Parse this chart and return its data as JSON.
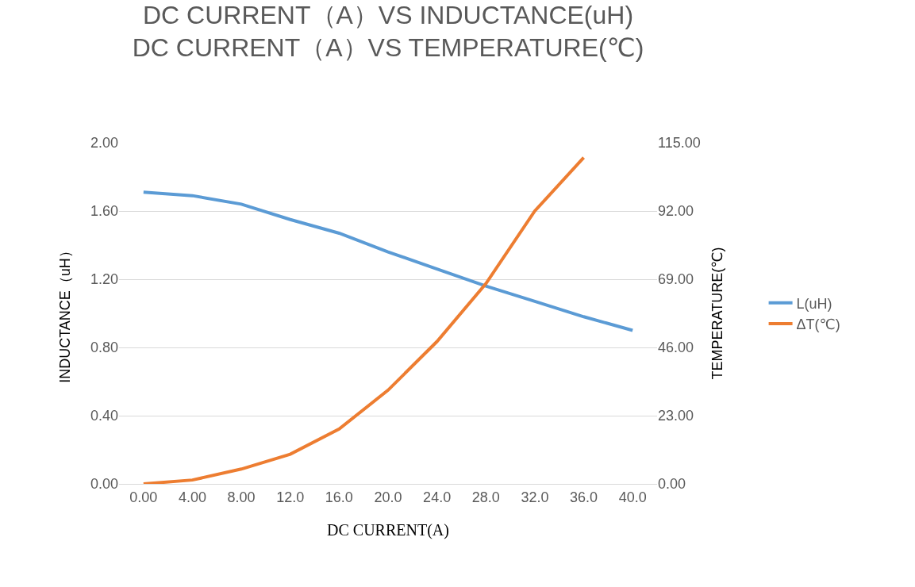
{
  "chart_data": {
    "type": "line",
    "title": "DC CURRENT（A）VS INDUCTANCE(uH)\nDC CURRENT（A）VS TEMPERATURE(℃)",
    "xlabel": "DC CURRENT(A)",
    "ylabel": "INDUCTANCE（uH）",
    "y2label": "TEMPERATURE(℃)",
    "categories": [
      "0.00",
      "4.00",
      "8.00",
      "12.0",
      "16.0",
      "20.0",
      "24.0",
      "28.0",
      "32.0",
      "36.0",
      "40.0"
    ],
    "series": [
      {
        "name": "L(uH)",
        "color": "#5b9bd5",
        "values": [
          1.71,
          1.69,
          1.64,
          1.55,
          1.47,
          1.36,
          1.26,
          1.16,
          1.07,
          0.98,
          0.9
        ]
      },
      {
        "name": "ΔT(℃)",
        "color": "#ed7d31",
        "axis": "y2",
        "values": [
          0,
          1.3,
          5,
          10,
          18.5,
          31.6,
          48,
          67.5,
          92,
          110,
          null
        ]
      }
    ],
    "ylim": [
      0,
      2
    ],
    "yticks": [
      {
        "value": 0,
        "label": "0.00"
      },
      {
        "value": 0.4,
        "label": "0.40"
      },
      {
        "value": 0.8,
        "label": "0.80"
      },
      {
        "value": 1.2,
        "label": "1.20"
      },
      {
        "value": 1.6,
        "label": "1.60"
      },
      {
        "value": 2,
        "label": "2.00"
      }
    ],
    "y2lim": [
      0,
      115
    ],
    "y2ticks": [
      {
        "value": 0,
        "label": "0.00"
      },
      {
        "value": 23,
        "label": "23.00"
      },
      {
        "value": 46,
        "label": "46.00"
      },
      {
        "value": 69,
        "label": "69.00"
      },
      {
        "value": 92,
        "label": "92.00"
      },
      {
        "value": 115,
        "label": "115.00"
      }
    ],
    "grid": "y",
    "legend": "right",
    "marker": "none",
    "line_style": "solid"
  }
}
